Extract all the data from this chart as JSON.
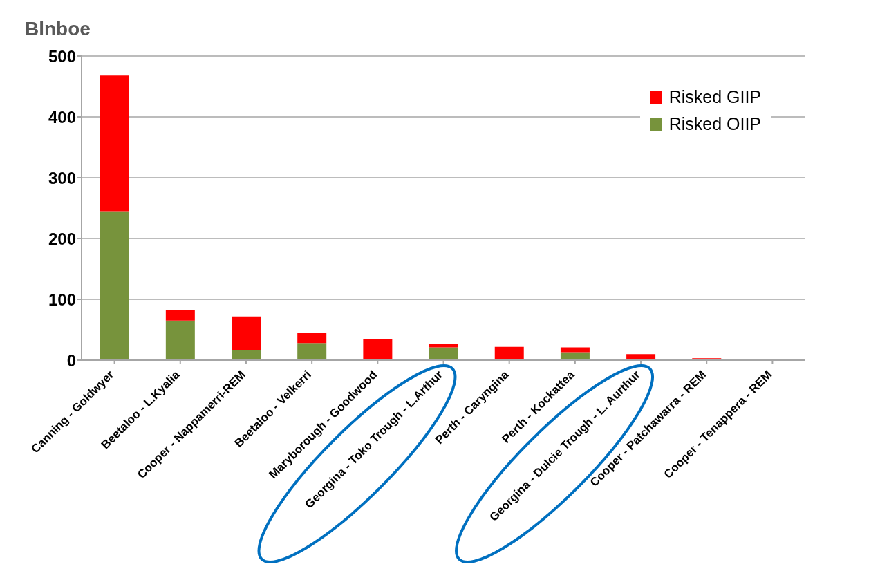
{
  "chart_data": {
    "type": "bar",
    "stacked": true,
    "ylabel": "Blnboe",
    "categories": [
      "Canning - Goldwyer",
      "Beetaloo - L.Kyalia",
      "Cooper - Nappamerri-REM",
      "Beetaloo - Velkerri",
      "Maryborough - Goodwood",
      "Georgina - Toko Trough - L.Arthur",
      "Perth - Caryngina",
      "Perth - Kockattea",
      "Georgina - Dulcie Trough - L. Aurthur",
      "Cooper - Patchawarra - REM",
      "Cooper - Tenappera - REM"
    ],
    "series": [
      {
        "name": "Risked OIIP",
        "color": "#77933c",
        "values": [
          245,
          65,
          16,
          28,
          0,
          21,
          0,
          13,
          2,
          0,
          0
        ]
      },
      {
        "name": "Risked GIIP",
        "color": "#ff0000",
        "values": [
          223,
          18,
          56,
          17,
          34,
          5,
          22,
          8,
          8,
          3,
          0
        ]
      }
    ],
    "ylim": [
      0,
      500
    ],
    "yticks": [
      0,
      100,
      200,
      300,
      400,
      500
    ],
    "grid": "y",
    "legend": "top right"
  }
}
